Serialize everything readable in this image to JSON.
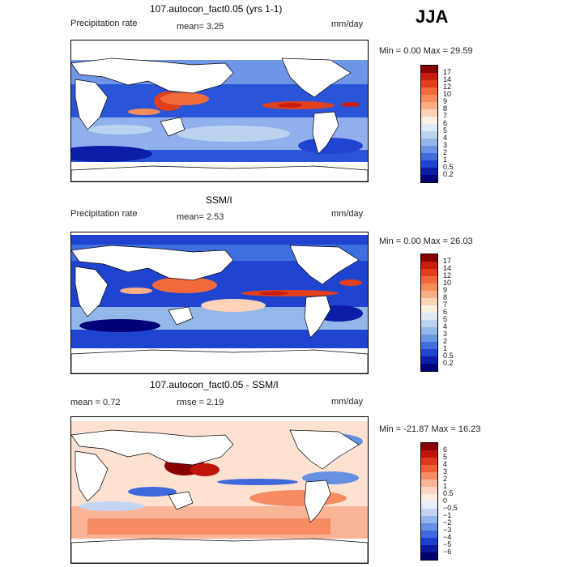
{
  "season": "JJA",
  "panels": [
    {
      "title": "107.autocon_fact0.05 (yrs 1-1)",
      "left_label": "Precipitation rate",
      "stat1": "mean=   3.25",
      "stat2": "",
      "units": "mm/day",
      "minmax": "Min =    0.00 Max =  29.59",
      "levels": [
        "17",
        "14",
        "12",
        "10",
        "9",
        "8",
        "7",
        "6",
        "5",
        "4",
        "3",
        "2",
        "1",
        "0.5",
        "0.2"
      ],
      "colors": [
        "#8b0000",
        "#c81e0f",
        "#e2401c",
        "#f26a3a",
        "#f78b5c",
        "#f9ae88",
        "#fcd3b6",
        "#fdf0e4",
        "#dfe9f7",
        "#bcd3f0",
        "#94b7ea",
        "#6a95e3",
        "#3f6fde",
        "#1f45d0",
        "#0a1ea8",
        "#00007a"
      ]
    },
    {
      "title": "SSM/I",
      "left_label": "Precipitation rate",
      "stat1": "mean=   2.53",
      "stat2": "",
      "units": "mm/day",
      "minmax": "Min =    0.00 Max =  26.03",
      "levels": [
        "17",
        "14",
        "12",
        "10",
        "9",
        "8",
        "7",
        "6",
        "5",
        "4",
        "3",
        "2",
        "1",
        "0.5",
        "0.2"
      ],
      "colors": [
        "#8b0000",
        "#c81e0f",
        "#e2401c",
        "#f26a3a",
        "#f78b5c",
        "#f9ae88",
        "#fcd3b6",
        "#fdf0e4",
        "#dfe9f7",
        "#bcd3f0",
        "#94b7ea",
        "#6a95e3",
        "#3f6fde",
        "#1f45d0",
        "#0a1ea8",
        "#00007a"
      ]
    },
    {
      "title": "107.autocon_fact0.05 - SSM/I",
      "left_label": "mean =    0.72",
      "stat1": "rmse =    2.19",
      "stat2": "",
      "units": "mm/day",
      "minmax": "Min = -21.87 Max =  16.23",
      "levels": [
        "6",
        "5",
        "4",
        "3",
        "2",
        "1",
        "0.5",
        "0",
        "−0.5",
        "−1",
        "−2",
        "−3",
        "−4",
        "−5",
        "−6"
      ],
      "colors": [
        "#8b0000",
        "#c0150b",
        "#dd3a1c",
        "#ef6035",
        "#f78c63",
        "#f9b596",
        "#fcd6c3",
        "#fdeee4",
        "#e6eefb",
        "#c3d5f3",
        "#94b5eb",
        "#6690e2",
        "#3d69dc",
        "#1e40cc",
        "#0a1ba0",
        "#00006e"
      ]
    }
  ]
}
